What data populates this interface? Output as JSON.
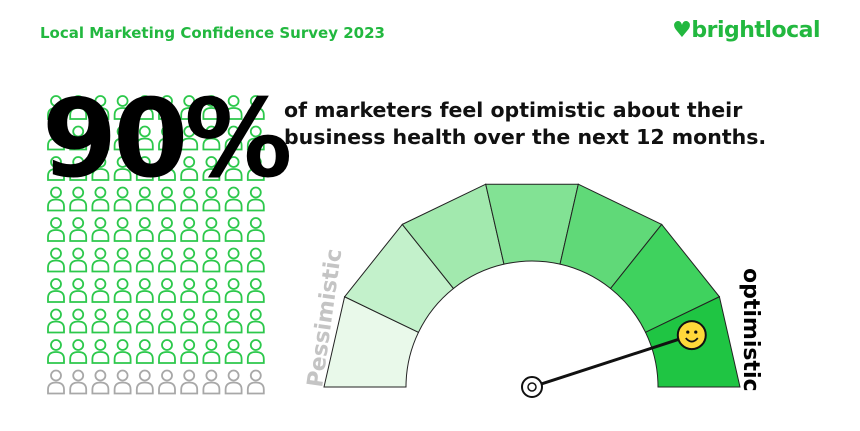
{
  "header": {
    "title": "Local Marketing Confidence Survey 2023",
    "logo": "brightlocal"
  },
  "chart_data": {
    "type": "gauge",
    "values": [
      90
    ],
    "value_labels": [
      "90%"
    ],
    "subtitle": "of marketers feel optimistic about their business health over the next 12 months.",
    "min_label": "Pessimistic",
    "max_label": "optimistic",
    "ylim": [
      0,
      100
    ],
    "colors": [
      "#e9f9ea",
      "#c3f1cb",
      "#a2e9ae",
      "#82e294",
      "#60d978",
      "#3fd25e",
      "#1fc543"
    ],
    "color": "#2cc84b"
  }
}
